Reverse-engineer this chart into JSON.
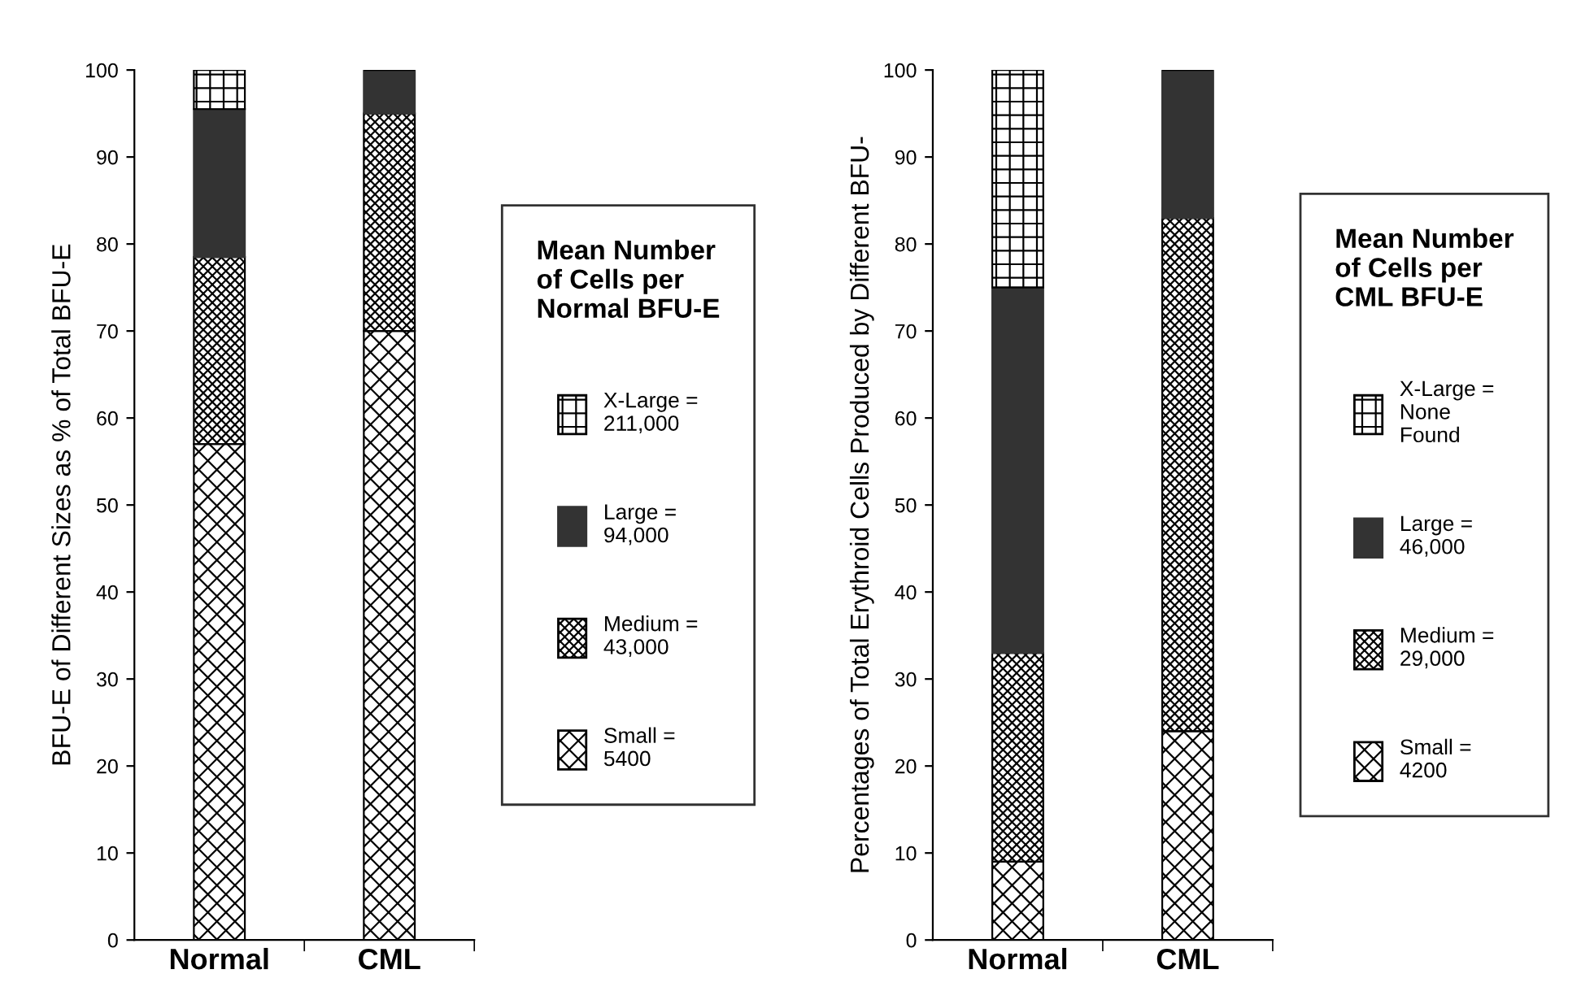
{
  "chart_data": [
    {
      "type": "bar",
      "stacked": true,
      "ylabel": "BFU-E of Different Sizes as % of Total BFU-E",
      "legend_title": "Mean Number\nof Cells per\nNormal BFU-E",
      "legend": "right",
      "categories": [
        "Normal",
        "CML"
      ],
      "ylim": [
        0,
        100
      ],
      "yticks": [
        0,
        10,
        20,
        30,
        40,
        50,
        60,
        70,
        80,
        90,
        100
      ],
      "grid": false,
      "series": [
        {
          "name": "Small =\n5400",
          "color": "#000000",
          "values": [
            57,
            70
          ]
        },
        {
          "name": "Medium =\n43,000",
          "color": "#000000",
          "values": [
            21.5,
            25
          ]
        },
        {
          "name": "Large =\n94,000",
          "color": "#333333",
          "values": [
            17,
            5
          ]
        },
        {
          "name": "X-Large =\n211,000",
          "color": "#000000",
          "values": [
            4.5,
            0
          ]
        }
      ]
    },
    {
      "type": "bar",
      "stacked": true,
      "ylabel": "Percentages of Total Erythroid Cells Produced by Different BFU-",
      "legend_title": "Mean Number\nof Cells per\nCML BFU-E",
      "legend": "right",
      "categories": [
        "Normal",
        "CML"
      ],
      "ylim": [
        0,
        100
      ],
      "yticks": [
        0,
        10,
        20,
        30,
        40,
        50,
        60,
        70,
        80,
        90,
        100
      ],
      "grid": false,
      "series": [
        {
          "name": "Small =\n4200",
          "color": "#000000",
          "values": [
            9,
            24
          ]
        },
        {
          "name": "Medium =\n29,000",
          "color": "#000000",
          "values": [
            24,
            59
          ]
        },
        {
          "name": "Large =\n46,000",
          "color": "#333333",
          "values": [
            42,
            17
          ]
        },
        {
          "name": "X-Large =\nNone\nFound",
          "color": "#000000",
          "values": [
            25,
            0
          ]
        }
      ]
    }
  ]
}
